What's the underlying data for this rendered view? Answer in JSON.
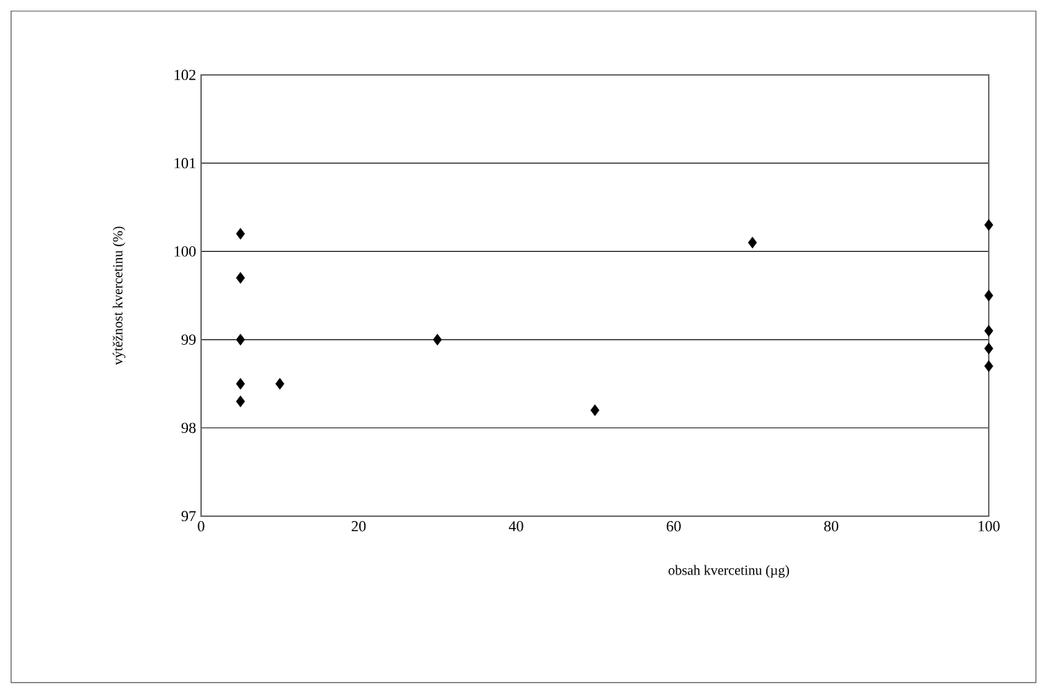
{
  "chart_data": {
    "type": "scatter",
    "xlabel": "obsah kvercetinu (µg)",
    "ylabel": "výtěžnost kvercetinu (%)",
    "x": [
      5,
      5,
      5,
      5,
      5,
      10,
      30,
      50,
      70,
      100,
      100,
      100,
      100,
      100
    ],
    "series": [
      {
        "color": "#000000",
        "values": [
          100.2,
          99.7,
          99.0,
          98.5,
          98.3,
          98.5,
          99.0,
          98.2,
          100.1,
          100.3,
          99.5,
          99.1,
          98.9,
          98.7
        ]
      }
    ],
    "marker": "diamond",
    "grid": "y",
    "xlim": [
      0,
      100
    ],
    "ylim": [
      97,
      102
    ],
    "xticks": [
      0,
      20,
      40,
      60,
      80,
      100
    ],
    "yticks": [
      97,
      98,
      99,
      100,
      101,
      102
    ]
  }
}
